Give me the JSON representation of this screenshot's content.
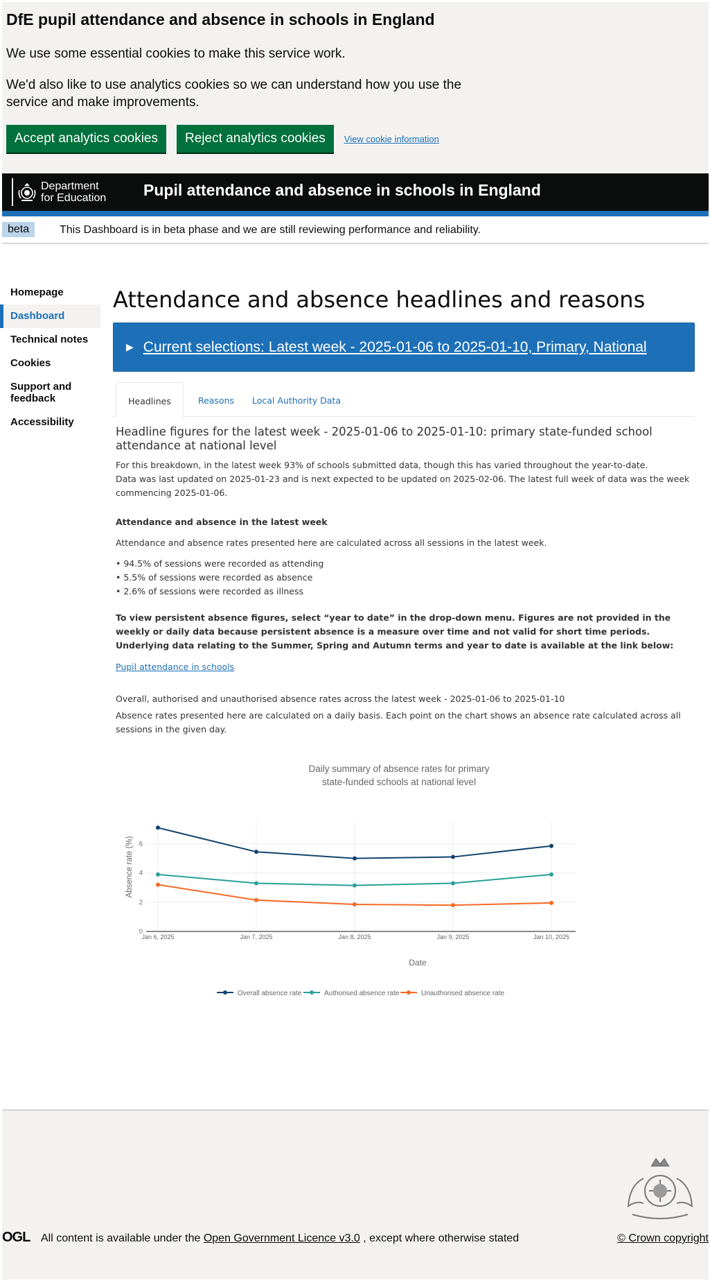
{
  "cookie_banner": {
    "title": "DfE pupil attendance and absence in schools in England",
    "line1": "We use some essential cookies to make this service work.",
    "line2": "We'd also like to use analytics cookies so we can understand how you use the service and make improvements.",
    "accept_label": "Accept analytics cookies",
    "reject_label": "Reject analytics cookies",
    "info_label": "View cookie information"
  },
  "header": {
    "org_line1": "Department",
    "org_line2": "for Education",
    "service_name": "Pupil attendance and absence in schools in England"
  },
  "beta": {
    "tag": "beta",
    "message": "This Dashboard is in beta phase and we are still reviewing performance and reliability."
  },
  "nav": {
    "items": [
      {
        "label": "Homepage"
      },
      {
        "label": "Dashboard"
      },
      {
        "label": "Technical notes"
      },
      {
        "label": "Cookies"
      },
      {
        "label": "Support and feedback"
      },
      {
        "label": "Accessibility"
      }
    ]
  },
  "main": {
    "title": "Attendance and absence headlines and reasons",
    "selections": "Current selections: Latest week - 2025-01-06 to 2025-01-10, Primary, National",
    "tabs": [
      {
        "label": "Headlines"
      },
      {
        "label": "Reasons"
      },
      {
        "label": "Local Authority Data"
      }
    ]
  },
  "headlines": {
    "heading": "Headline figures for the latest week - 2025-01-06 to 2025-01-10: primary state-funded school attendance at national level",
    "intro1": "For this breakdown, in the latest week 93% of schools submitted data, though this has varied throughout the year-to-date.",
    "intro2": "Data was last updated on 2025-01-23 and is next expected to be updated on 2025-02-06. The latest full week of data was the week commencing 2025-01-06.",
    "section_title": "Attendance and absence in the latest week",
    "section_intro": "Attendance and absence rates presented here are calculated across all sessions in the latest week.",
    "bullets": [
      "• 94.5% of sessions were recorded as attending",
      "• 5.5% of sessions were recorded as absence",
      "• 2.6% of sessions were recorded as illness"
    ],
    "persistent_note": "To view persistent absence figures, select “year to date” in the drop-down menu. Figures are not provided in the weekly or daily data because persistent absence is a measure over time and not valid for short time periods. Underlying data relating to the Summer, Spring and Autumn terms and year to date is available at the link below:",
    "link_label": "Pupil attendance in schools",
    "rates_heading": "Overall, authorised and unauthorised absence rates across the latest week - 2025-01-06 to 2025-01-10",
    "rates_note": "Absence rates presented here are calculated on a daily basis. Each point on the chart shows an absence rate calculated across all sessions in the given day."
  },
  "chart_data": {
    "type": "line",
    "title_line1": "Daily summary of absence rates for primary",
    "title_line2": "state-funded schools at national level",
    "xlabel": "Date",
    "ylabel": "Absence rate (%)",
    "categories": [
      "Jan 6, 2025",
      "Jan 7, 2025",
      "Jan 8, 2025",
      "Jan 9, 2025",
      "Jan 10, 2025"
    ],
    "yticks": [
      "0",
      "2",
      "4",
      "6"
    ],
    "ylim": [
      0,
      7.5
    ],
    "grid": true,
    "legend_position": "bottom",
    "series": [
      {
        "name": "Overall absence rate",
        "color": "#12436d",
        "values": [
          7.1,
          5.45,
          5.0,
          5.1,
          5.85
        ]
      },
      {
        "name": "Authorised absence rate",
        "color": "#28a197",
        "values": [
          3.9,
          3.3,
          3.15,
          3.3,
          3.9
        ]
      },
      {
        "name": "Unauthorised absence rate",
        "color": "#f46a25",
        "values": [
          3.2,
          2.15,
          1.85,
          1.8,
          1.95
        ]
      }
    ]
  },
  "footer": {
    "ogl": "OGL",
    "licence_prefix": "All content is available under the",
    "licence_link": "Open Government Licence v3.0",
    "licence_suffix": ", except where otherwise stated",
    "copyright": "© Crown copyright"
  }
}
